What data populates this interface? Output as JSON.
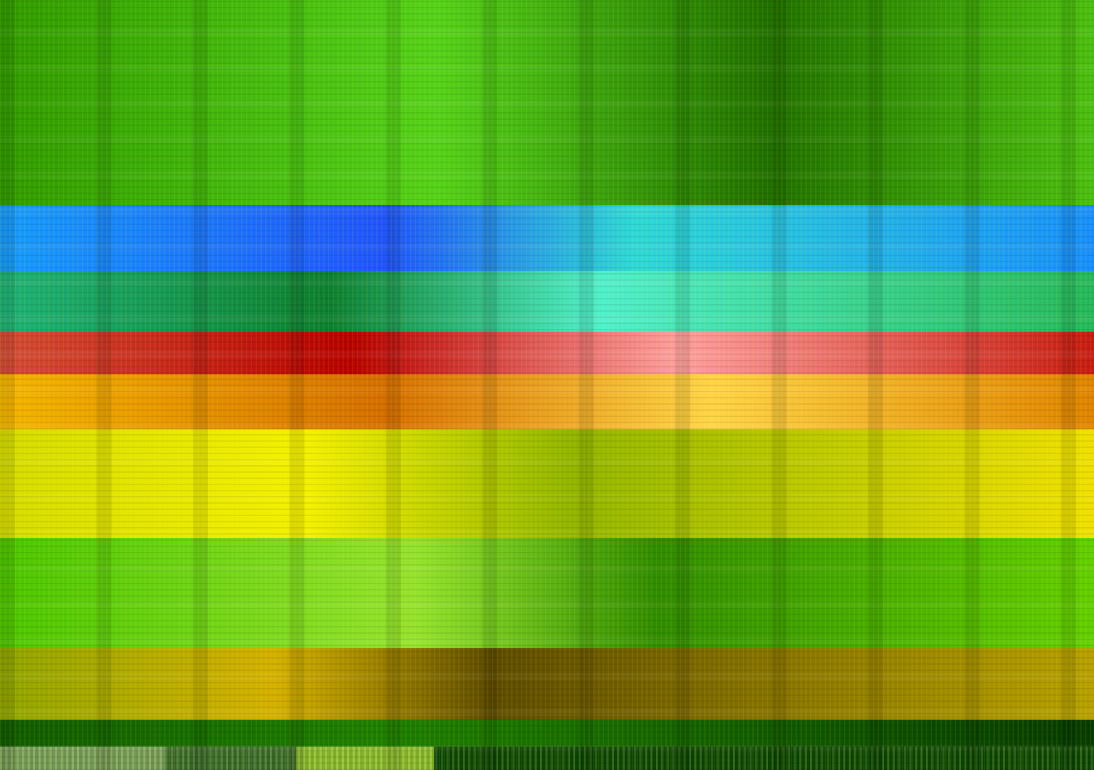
{
  "scene": {
    "bands": [
      {
        "name": "top-green",
        "color_a": "#2f9b00",
        "color_b": "#54d21b",
        "color_c": "#1f7000"
      },
      {
        "name": "blue-strip",
        "color_a": "#159cff",
        "color_b": "#1f54ff",
        "color_c": "#2dd9d9"
      },
      {
        "name": "teal-green-strip",
        "color_a": "#1db37a",
        "color_b": "#0c7f31",
        "color_c": "#4ef0cf"
      },
      {
        "name": "red-strip",
        "color_a": "#d54c38",
        "color_b": "#b80000",
        "color_c": "#ff9fa0"
      },
      {
        "name": "orange-strip",
        "color_a": "#f4b500",
        "color_b": "#d66e00",
        "color_c": "#ffd447"
      },
      {
        "name": "yellow-strip",
        "color_a": "#d5dd00",
        "color_b": "#f4f000",
        "color_c": "#91b500"
      },
      {
        "name": "mid-green",
        "color_a": "#4bc600",
        "color_b": "#95e32f",
        "color_c": "#2f8c00"
      },
      {
        "name": "brown-yellow",
        "color_a": "#8fa400",
        "color_b": "#d4b000",
        "color_c": "#5d4b00"
      },
      {
        "name": "dark-bottom",
        "color_a": "#0f5a00",
        "color_b": "#1d7f00",
        "color_c": "#053b00"
      }
    ]
  }
}
